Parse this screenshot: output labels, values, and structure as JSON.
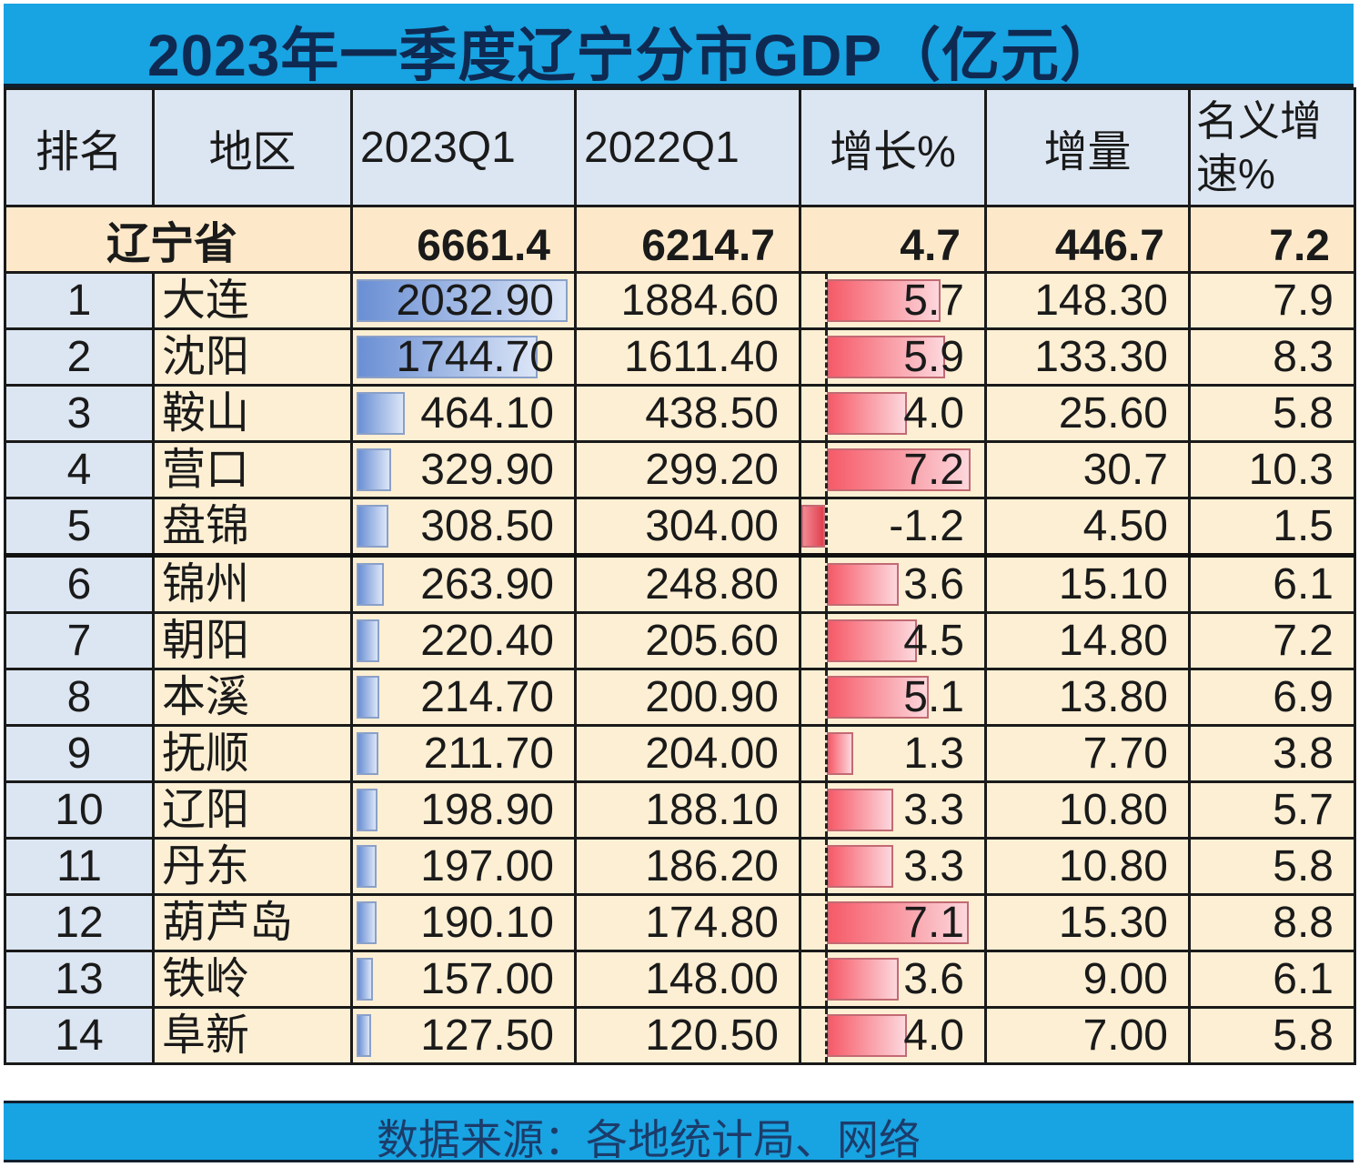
{
  "title": "2023年一季度辽宁分市GDP（亿元）",
  "headers": {
    "rank": "排名",
    "region": "地区",
    "q1_2023": "2023Q1",
    "q1_2022": "2022Q1",
    "growth_pct": "增长%",
    "increment": "增量",
    "nominal_growth_pct": "名义增速%"
  },
  "total": {
    "name": "辽宁省",
    "q1_2023": "6661.4",
    "q1_2022": "6214.7",
    "growth_pct": "4.7",
    "increment": "446.7",
    "nominal_growth_pct": "7.2"
  },
  "rows": [
    {
      "rank": "1",
      "city": "大连",
      "q1_2023": "2032.90",
      "q1_2022": "1884.60",
      "growth_pct": "5.7",
      "increment": "148.30",
      "nominal": "7.9"
    },
    {
      "rank": "2",
      "city": "沈阳",
      "q1_2023": "1744.70",
      "q1_2022": "1611.40",
      "growth_pct": "5.9",
      "increment": "133.30",
      "nominal": "8.3"
    },
    {
      "rank": "3",
      "city": "鞍山",
      "q1_2023": "464.10",
      "q1_2022": "438.50",
      "growth_pct": "4.0",
      "increment": "25.60",
      "nominal": "5.8"
    },
    {
      "rank": "4",
      "city": "营口",
      "q1_2023": "329.90",
      "q1_2022": "299.20",
      "growth_pct": "7.2",
      "increment": "30.7",
      "nominal": "10.3"
    },
    {
      "rank": "5",
      "city": "盘锦",
      "q1_2023": "308.50",
      "q1_2022": "304.00",
      "growth_pct": "-1.2",
      "increment": "4.50",
      "nominal": "1.5"
    },
    {
      "rank": "6",
      "city": "锦州",
      "q1_2023": "263.90",
      "q1_2022": "248.80",
      "growth_pct": "3.6",
      "increment": "15.10",
      "nominal": "6.1"
    },
    {
      "rank": "7",
      "city": "朝阳",
      "q1_2023": "220.40",
      "q1_2022": "205.60",
      "growth_pct": "4.5",
      "increment": "14.80",
      "nominal": "7.2"
    },
    {
      "rank": "8",
      "city": "本溪",
      "q1_2023": "214.70",
      "q1_2022": "200.90",
      "growth_pct": "5.1",
      "increment": "13.80",
      "nominal": "6.9"
    },
    {
      "rank": "9",
      "city": "抚顺",
      "q1_2023": "211.70",
      "q1_2022": "204.00",
      "growth_pct": "1.3",
      "increment": "7.70",
      "nominal": "3.8"
    },
    {
      "rank": "10",
      "city": "辽阳",
      "q1_2023": "198.90",
      "q1_2022": "188.10",
      "growth_pct": "3.3",
      "increment": "10.80",
      "nominal": "5.7"
    },
    {
      "rank": "11",
      "city": "丹东",
      "q1_2023": "197.00",
      "q1_2022": "186.20",
      "growth_pct": "3.3",
      "increment": "10.80",
      "nominal": "5.8"
    },
    {
      "rank": "12",
      "city": "葫芦岛",
      "q1_2023": "190.10",
      "q1_2022": "174.80",
      "growth_pct": "7.1",
      "increment": "15.30",
      "nominal": "8.8"
    },
    {
      "rank": "13",
      "city": "铁岭",
      "q1_2023": "157.00",
      "q1_2022": "148.00",
      "growth_pct": "3.6",
      "increment": "9.00",
      "nominal": "6.1"
    },
    {
      "rank": "14",
      "city": "阜新",
      "q1_2023": "127.50",
      "q1_2022": "120.50",
      "growth_pct": "4.0",
      "increment": "7.00",
      "nominal": "5.8"
    }
  ],
  "footer": "数据来源：各地统计局、网络",
  "colors": {
    "title_bg": "#18a3e2",
    "title_text": "#0f2a52",
    "header_bg": "#dce6f2",
    "row_bg": "#fdefd3",
    "total_bg": "#fde9c9",
    "data_bar_blue": "#6a8fd4",
    "data_bar_red": "#f65a68"
  },
  "chart_data": {
    "type": "table",
    "title": "2023年一季度辽宁分市GDP（亿元）",
    "columns": [
      "排名",
      "地区",
      "2023Q1",
      "2022Q1",
      "增长%",
      "增量",
      "名义增速%"
    ],
    "categories": [
      "大连",
      "沈阳",
      "鞍山",
      "营口",
      "盘锦",
      "锦州",
      "朝阳",
      "本溪",
      "抚顺",
      "辽阳",
      "丹东",
      "葫芦岛",
      "铁岭",
      "阜新"
    ],
    "series": [
      {
        "name": "2023Q1",
        "values": [
          2032.9,
          1744.7,
          464.1,
          329.9,
          308.5,
          263.9,
          220.4,
          214.7,
          211.7,
          198.9,
          197.0,
          190.1,
          157.0,
          127.5
        ]
      },
      {
        "name": "2022Q1",
        "values": [
          1884.6,
          1611.4,
          438.5,
          299.2,
          304.0,
          248.8,
          205.6,
          200.9,
          204.0,
          188.1,
          186.2,
          174.8,
          148.0,
          120.5
        ]
      },
      {
        "name": "增长%",
        "values": [
          5.7,
          5.9,
          4.0,
          7.2,
          -1.2,
          3.6,
          4.5,
          5.1,
          1.3,
          3.3,
          3.3,
          7.1,
          3.6,
          4.0
        ]
      },
      {
        "name": "增量",
        "values": [
          148.3,
          133.3,
          25.6,
          30.7,
          4.5,
          15.1,
          14.8,
          13.8,
          7.7,
          10.8,
          10.8,
          15.3,
          9.0,
          7.0
        ]
      },
      {
        "name": "名义增速%",
        "values": [
          7.9,
          8.3,
          5.8,
          10.3,
          1.5,
          6.1,
          7.2,
          6.9,
          3.8,
          5.7,
          5.8,
          8.8,
          6.1,
          5.8
        ]
      }
    ],
    "total": {
      "name": "辽宁省",
      "2023Q1": 6661.4,
      "2022Q1": 6214.7,
      "增长%": 4.7,
      "增量": 446.7,
      "名义增速%": 7.2
    },
    "annotations": [
      "数据来源：各地统计局、网络"
    ],
    "data_bars": {
      "2023Q1": "blue gradient",
      "增长%": "red gradient with dashed zero axis"
    }
  }
}
